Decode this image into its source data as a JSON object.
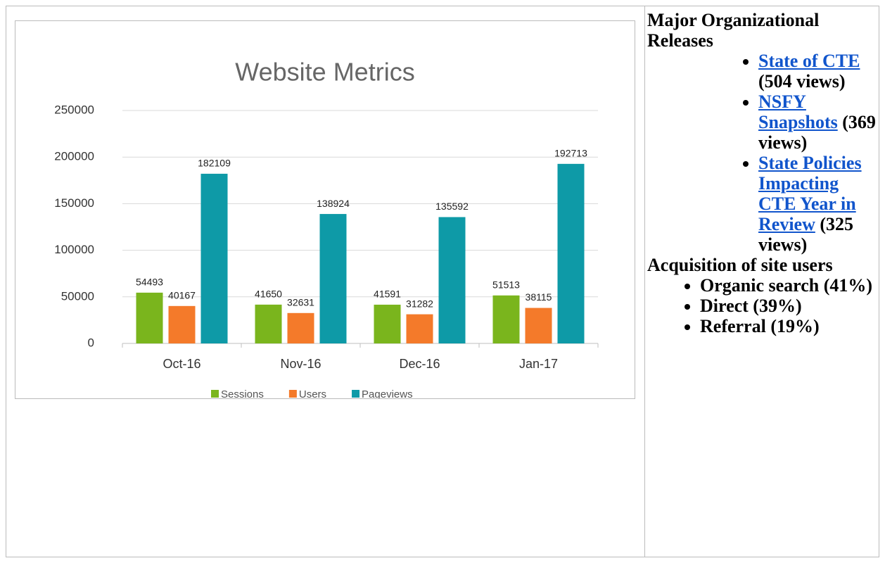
{
  "chart_data": {
    "type": "bar",
    "title": "Website Metrics",
    "categories": [
      "Oct-16",
      "Nov-16",
      "Dec-16",
      "Jan-17"
    ],
    "series": [
      {
        "name": "Sessions",
        "color": "#7ab51d",
        "values": [
          54493,
          41650,
          41591,
          51513
        ]
      },
      {
        "name": "Users",
        "color": "#f47a2a",
        "values": [
          40167,
          32631,
          31282,
          38115
        ]
      },
      {
        "name": "Pageviews",
        "color": "#0e9aa7",
        "values": [
          182109,
          138924,
          135592,
          192713
        ]
      }
    ],
    "ylim": [
      0,
      250000
    ],
    "yticks": [
      0,
      50000,
      100000,
      150000,
      200000,
      250000
    ],
    "grid": true,
    "legend": "bottom"
  },
  "sidebar": {
    "releases_heading": "Major Organizational Releases",
    "releases": [
      {
        "link": "State of CTE",
        "note": "(504 views)"
      },
      {
        "link": "NSFY Snapshots",
        "note": "(369 views)"
      },
      {
        "link": "State Policies Impacting CTE Year in Review",
        "note": "(325 views)"
      }
    ],
    "acquisition_heading": "Acquisition of site users",
    "acquisition": [
      "Organic search (41%)",
      "Direct (39%)",
      "Referral (19%)"
    ]
  }
}
